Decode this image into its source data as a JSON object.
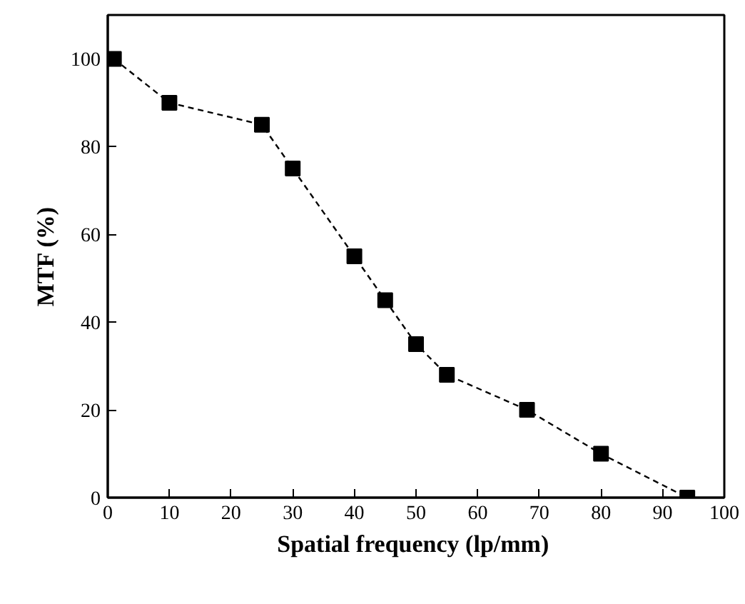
{
  "chart_data": {
    "type": "line",
    "xlabel": "Spatial  frequency (lp/mm)",
    "ylabel": "MTF (%)",
    "x": [
      1,
      10,
      25,
      30,
      40,
      45,
      50,
      55,
      68,
      80,
      94
    ],
    "series": [
      {
        "color": "#000000",
        "values": [
          100,
          90,
          85,
          75,
          55,
          45,
          35,
          28,
          20,
          10,
          0
        ]
      }
    ],
    "xlim": [
      0,
      100
    ],
    "ylim": [
      0,
      110
    ],
    "xticks": [
      0,
      10,
      20,
      30,
      40,
      50,
      60,
      70,
      80,
      90,
      100
    ],
    "yticks": [
      0,
      20,
      40,
      60,
      80,
      100
    ],
    "marker": "square",
    "line_style": "dashed",
    "grid": false
  }
}
